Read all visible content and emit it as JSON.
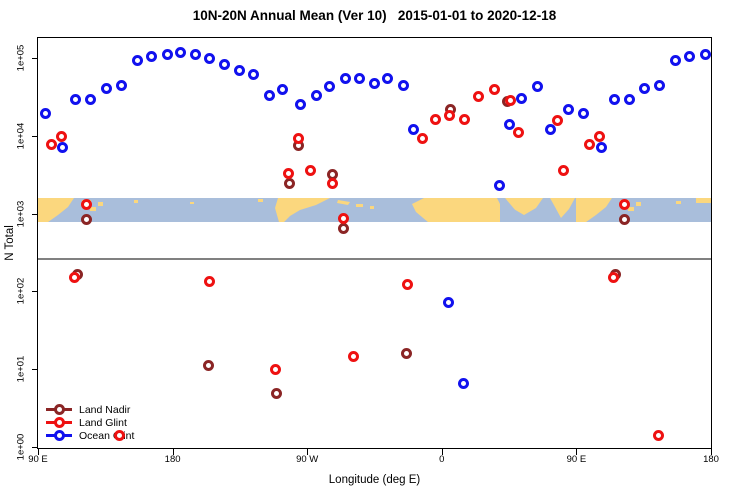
{
  "title": "10N-20N Annual Mean (Ver 10)   2015-01-01 to 2020-12-18",
  "axes": {
    "xlabel": "Longitude (deg E)",
    "ylabel": "N Total",
    "x_ticks": [
      "90 E",
      "180",
      "90 W",
      "0",
      "90 E",
      "180"
    ],
    "y_ticks": [
      "1e+00",
      "1e+01",
      "1e+02",
      "1e+03",
      "1e+04",
      "1e+05"
    ]
  },
  "legend": [
    {
      "label": "Land Nadir",
      "color": "#8B2525"
    },
    {
      "label": "Land Glint",
      "color": "#EE1111"
    },
    {
      "label": "Ocean Glint",
      "color": "#1111EE"
    }
  ],
  "chart_data": {
    "type": "scatter",
    "title": "10N-20N Annual Mean (Ver 10)   2015-01-01 to 2020-12-18",
    "xlabel": "Longitude (deg E)",
    "ylabel": "N Total",
    "x_axis": {
      "unit": "deg E plot coordinate (wraps 90E→180→90W→0→90E→180)",
      "range": [
        90,
        540
      ],
      "tick_values": [
        90,
        180,
        270,
        360,
        450,
        540
      ]
    },
    "y_axis": {
      "scale": "log10",
      "range": [
        1,
        100000
      ]
    },
    "grid": false,
    "legend_position": "bottom-left inside plot",
    "reference_line": {
      "value": 260,
      "color": "#808080"
    },
    "map_band": {
      "top_value": 1590,
      "bottom_value": 780,
      "ocean_color": "#A9BEDB",
      "land_color": "#FBD77E",
      "note": "world coastline strip for 10N-20N latitude band"
    },
    "series": [
      {
        "name": "Land Nadir",
        "color": "#8B2525",
        "marker": "open-circle",
        "points": [
          [
            116.1,
            163
          ],
          [
            122.1,
            828
          ],
          [
            204.3,
            11.3
          ],
          [
            249.8,
            4.9
          ],
          [
            257.9,
            2470
          ],
          [
            264.5,
            7400
          ],
          [
            286.6,
            3140
          ],
          [
            294,
            634
          ],
          [
            336.1,
            16.1
          ],
          [
            365.5,
            21500
          ],
          [
            403.6,
            28000
          ],
          [
            476.1,
            163
          ],
          [
            482.1,
            828
          ]
        ]
      },
      {
        "name": "Land Glint",
        "color": "#EE1111",
        "marker": "open-circle",
        "points": [
          [
            98.7,
            7620
          ],
          [
            105.4,
            9660
          ],
          [
            114.7,
            149
          ],
          [
            122.1,
            1290
          ],
          [
            144.8,
            1.4
          ],
          [
            205,
            136
          ],
          [
            249.1,
            10
          ],
          [
            257.2,
            3230
          ],
          [
            264.5,
            9360
          ],
          [
            271.9,
            3630
          ],
          [
            286.6,
            2470
          ],
          [
            294,
            877
          ],
          [
            300.7,
            14.4
          ],
          [
            336.8,
            124
          ],
          [
            346.8,
            9360
          ],
          [
            355.5,
            16400
          ],
          [
            364.9,
            18500
          ],
          [
            374.9,
            16000
          ],
          [
            384.3,
            31600
          ],
          [
            395,
            38800
          ],
          [
            405.7,
            28800
          ],
          [
            411.6,
            10900
          ],
          [
            437.1,
            15500
          ],
          [
            441.7,
            3630
          ],
          [
            458.7,
            7620
          ],
          [
            465.4,
            9660
          ],
          [
            474.7,
            149
          ],
          [
            482.1,
            1290
          ],
          [
            504.8,
            1.4
          ]
        ]
      },
      {
        "name": "Ocean Glint",
        "color": "#1111EE",
        "marker": "open-circle",
        "points": [
          [
            94.7,
            19100
          ],
          [
            106.7,
            6970
          ],
          [
            115.4,
            29700
          ],
          [
            125.4,
            29700
          ],
          [
            135.5,
            41100
          ],
          [
            145.5,
            43700
          ],
          [
            156.2,
            94200
          ],
          [
            165.6,
            106000
          ],
          [
            176.3,
            112500
          ],
          [
            185.6,
            116000
          ],
          [
            195.6,
            112500
          ],
          [
            205,
            97100
          ],
          [
            214.4,
            83700
          ],
          [
            224.4,
            70100
          ],
          [
            233.8,
            62200
          ],
          [
            245.1,
            33400
          ],
          [
            253.8,
            38800
          ],
          [
            265.2,
            25600
          ],
          [
            275.9,
            33400
          ],
          [
            284.6,
            42400
          ],
          [
            295.3,
            55300
          ],
          [
            305.3,
            55300
          ],
          [
            314.7,
            47700
          ],
          [
            323.4,
            55300
          ],
          [
            334.1,
            43700
          ],
          [
            341.4,
            12200
          ],
          [
            364.2,
            73
          ],
          [
            374.2,
            6.5
          ],
          [
            398.3,
            2330
          ],
          [
            405,
            13800
          ],
          [
            413.6,
            30600
          ],
          [
            424.3,
            42400
          ],
          [
            432.4,
            11900
          ],
          [
            444.4,
            21500
          ],
          [
            454.7,
            19100
          ],
          [
            466.7,
            6970
          ],
          [
            475.4,
            29700
          ],
          [
            485.4,
            29700
          ],
          [
            495.5,
            41100
          ],
          [
            505.5,
            43700
          ],
          [
            516.2,
            94200
          ],
          [
            525.6,
            106000
          ],
          [
            536.3,
            112500
          ]
        ]
      }
    ]
  }
}
